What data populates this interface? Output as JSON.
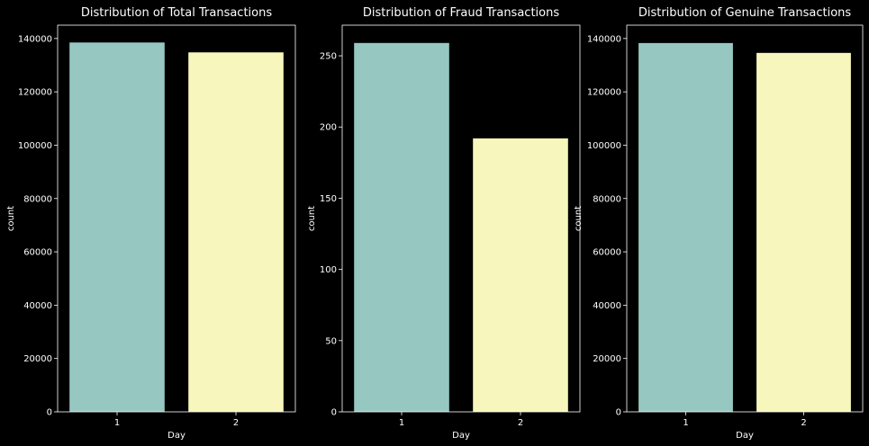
{
  "chart_data": [
    {
      "type": "bar",
      "title": "Distribution of Total Transactions",
      "xlabel": "Day",
      "ylabel": "count",
      "categories": [
        "1",
        "2"
      ],
      "values": [
        138500,
        134800
      ],
      "colors": [
        "#96c8c1",
        "#f7f7bd"
      ],
      "ylim": [
        0,
        145000
      ],
      "yticks": [
        0,
        20000,
        40000,
        60000,
        80000,
        100000,
        120000,
        140000
      ],
      "grid": false
    },
    {
      "type": "bar",
      "title": "Distribution of Fraud Transactions",
      "xlabel": "Day",
      "ylabel": "count",
      "categories": [
        "1",
        "2"
      ],
      "values": [
        259,
        192
      ],
      "colors": [
        "#96c8c1",
        "#f7f7bd"
      ],
      "ylim": [
        0,
        271.5
      ],
      "yticks": [
        0,
        50,
        100,
        150,
        200,
        250
      ],
      "grid": false
    },
    {
      "type": "bar",
      "title": "Distribution of Genuine Transactions",
      "xlabel": "Day",
      "ylabel": "count",
      "categories": [
        "1",
        "2"
      ],
      "values": [
        138300,
        134600
      ],
      "colors": [
        "#96c8c1",
        "#f7f7bd"
      ],
      "ylim": [
        0,
        145000
      ],
      "yticks": [
        0,
        20000,
        40000,
        60000,
        80000,
        100000,
        120000,
        140000
      ],
      "grid": false
    }
  ]
}
